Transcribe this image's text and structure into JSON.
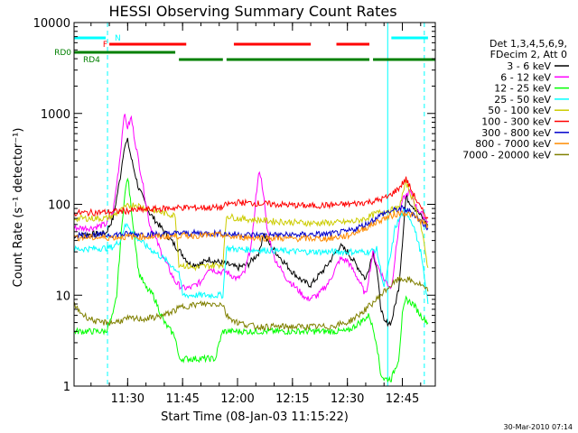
{
  "chart_data": {
    "type": "line",
    "title": "HESSI Observing Summary Count Rates",
    "xlabel": "Start Time (08-Jan-03 11:15:22)",
    "ylabel": "Count Rate (s⁻¹ detector⁻¹)",
    "footer": "30-Mar-2010 07:14",
    "y_scale": "log",
    "ylim": [
      1,
      10000
    ],
    "xlim": [
      "11:15:22",
      "12:54:00"
    ],
    "x_ticks": [
      "11:30",
      "11:45",
      "12:00",
      "12:15",
      "12:30",
      "12:45"
    ],
    "y_ticks": [
      "1",
      "10",
      "100",
      "1000",
      "10000"
    ],
    "legend_title": [
      "Det 1,3,4,5,6,9,",
      "FDecim 2, Att 0"
    ],
    "legend_position": "right",
    "flags": [
      {
        "label": "N",
        "color": "#00ffff",
        "segments": [
          [
            "11:15:22",
            "11:24:00"
          ],
          [
            "12:42:00",
            "12:52:00"
          ]
        ]
      },
      {
        "label": "F",
        "color": "#ff0000",
        "segments": [
          [
            "11:25:00",
            "11:46:00"
          ],
          [
            "11:59:00",
            "12:20:00"
          ],
          [
            "12:27:00",
            "12:36:00"
          ]
        ]
      },
      {
        "label": "RD0",
        "color": "#008000",
        "segments": [
          [
            "11:15:22",
            "11:43:00"
          ]
        ]
      },
      {
        "label": "RD4",
        "color": "#008000",
        "segments": [
          [
            "11:44:00",
            "11:56:00"
          ],
          [
            "11:57:00",
            "12:36:00"
          ],
          [
            "12:37:00",
            "12:54:00"
          ]
        ]
      }
    ],
    "vlines": [
      {
        "x": "11:15:22",
        "style": "solid",
        "color": "#00ffff"
      },
      {
        "x": "11:24:30",
        "style": "dashed",
        "color": "#00ffff"
      },
      {
        "x": "12:41:00",
        "style": "solid",
        "color": "#00ffff"
      },
      {
        "x": "12:51:00",
        "style": "dashed",
        "color": "#00ffff"
      }
    ],
    "series": [
      {
        "name": "3 - 6 keV",
        "color": "#000000",
        "x": [
          "11:15",
          "11:20",
          "11:24",
          "11:26",
          "11:28",
          "11:29",
          "11:30",
          "11:31",
          "11:33",
          "11:36",
          "11:40",
          "11:43",
          "11:45",
          "11:47",
          "11:50",
          "11:52",
          "11:55",
          "11:57",
          "12:00",
          "12:03",
          "12:06",
          "12:07",
          "12:09",
          "12:12",
          "12:15",
          "12:18",
          "12:20",
          "12:24",
          "12:28",
          "12:30",
          "12:33",
          "12:35",
          "12:37",
          "12:38",
          "12:39",
          "12:40",
          "12:42",
          "12:44",
          "12:46",
          "12:48",
          "12:50",
          "12:52"
        ],
        "y": [
          45,
          47,
          48,
          70,
          200,
          420,
          500,
          320,
          150,
          80,
          50,
          35,
          28,
          22,
          22,
          25,
          23,
          22,
          20,
          22,
          30,
          48,
          35,
          25,
          18,
          14,
          13,
          20,
          35,
          30,
          20,
          15,
          30,
          20,
          8,
          5,
          5,
          12,
          120,
          95,
          75,
          60
        ]
      },
      {
        "name": "6 - 12 keV",
        "color": "#ff00ff",
        "x": [
          "11:15",
          "11:20",
          "11:24",
          "11:26",
          "11:28",
          "11:29",
          "11:30",
          "11:31",
          "11:32",
          "11:34",
          "11:36",
          "11:40",
          "11:43",
          "11:45",
          "11:47",
          "11:50",
          "11:52",
          "11:55",
          "11:57",
          "12:00",
          "12:02",
          "12:04",
          "12:05",
          "12:06",
          "12:07",
          "12:08",
          "12:10",
          "12:13",
          "12:16",
          "12:19",
          "12:22",
          "12:25",
          "12:28",
          "12:30",
          "12:33",
          "12:35",
          "12:37",
          "12:38",
          "12:40",
          "12:42",
          "12:44",
          "12:45",
          "12:47",
          "12:49",
          "12:52"
        ],
        "y": [
          55,
          55,
          60,
          80,
          350,
          1000,
          700,
          900,
          500,
          180,
          60,
          25,
          14,
          12,
          12,
          14,
          20,
          18,
          18,
          15,
          18,
          40,
          120,
          240,
          140,
          55,
          26,
          16,
          12,
          9,
          10,
          14,
          25,
          24,
          15,
          10,
          30,
          22,
          15,
          12,
          55,
          110,
          140,
          90,
          65
        ]
      },
      {
        "name": "12 - 25 keV",
        "color": "#00ff00",
        "x": [
          "11:15",
          "11:24",
          "11:26",
          "11:27",
          "11:28",
          "11:29",
          "11:30",
          "11:31",
          "11:32",
          "11:33",
          "11:35",
          "11:37",
          "11:40",
          "11:43",
          "11:44",
          "11:46",
          "11:48",
          "11:50",
          "11:52",
          "11:54",
          "11:55",
          "11:56",
          "12:05",
          "12:10",
          "12:20",
          "12:30",
          "12:36",
          "12:38",
          "12:39",
          "12:40",
          "12:42",
          "12:44",
          "12:45",
          "12:46",
          "12:48",
          "12:50",
          "12:52"
        ],
        "y": [
          4,
          4,
          6,
          10,
          35,
          110,
          200,
          90,
          40,
          18,
          12,
          10,
          5,
          3.5,
          2,
          2,
          2,
          2,
          2,
          2,
          3,
          4,
          4,
          4,
          4,
          4,
          6,
          3,
          1.4,
          1.2,
          1.2,
          2,
          6,
          9,
          8,
          6,
          5
        ]
      },
      {
        "name": "25 - 50 keV",
        "color": "#00ffff",
        "x": [
          "11:15",
          "11:24",
          "11:26",
          "11:28",
          "11:29",
          "11:30",
          "11:32",
          "11:35",
          "11:40",
          "11:44",
          "11:45",
          "11:50",
          "11:56",
          "11:57",
          "12:00",
          "12:20",
          "12:30",
          "12:36",
          "12:38",
          "12:40",
          "12:42",
          "12:43",
          "12:45",
          "12:46",
          "12:48",
          "12:50",
          "12:52"
        ],
        "y": [
          32,
          33,
          34,
          40,
          55,
          60,
          45,
          35,
          25,
          18,
          10,
          10,
          10,
          33,
          32,
          30,
          30,
          30,
          32,
          12,
          30,
          55,
          80,
          85,
          60,
          30,
          8
        ]
      },
      {
        "name": "50 - 100 keV",
        "color": "#cccc00",
        "x": [
          "11:15",
          "11:24",
          "11:26",
          "11:28",
          "11:30",
          "11:32",
          "11:35",
          "11:40",
          "11:43",
          "11:44",
          "11:48",
          "11:52",
          "11:56",
          "11:57",
          "12:00",
          "12:10",
          "12:20",
          "12:28",
          "12:32",
          "12:35",
          "12:38",
          "12:41",
          "12:44",
          "12:46",
          "12:48",
          "12:50",
          "12:52"
        ],
        "y": [
          70,
          70,
          75,
          85,
          95,
          100,
          90,
          80,
          75,
          22,
          20,
          21,
          22,
          75,
          70,
          65,
          62,
          63,
          65,
          70,
          80,
          85,
          90,
          175,
          110,
          60,
          20
        ]
      },
      {
        "name": "100 - 300 keV",
        "color": "#ff0000",
        "x": [
          "11:15",
          "11:24",
          "11:30",
          "11:40",
          "11:44",
          "11:56",
          "11:57",
          "12:00",
          "12:10",
          "12:20",
          "12:30",
          "12:35",
          "12:38",
          "12:41",
          "12:44",
          "12:46",
          "12:48",
          "12:50",
          "12:52"
        ],
        "y": [
          80,
          82,
          85,
          90,
          92,
          92,
          100,
          105,
          100,
          96,
          100,
          105,
          110,
          120,
          150,
          190,
          130,
          90,
          70
        ]
      },
      {
        "name": "300 - 800 keV",
        "color": "#0000cc",
        "x": [
          "11:15",
          "11:24",
          "11:30",
          "11:40",
          "11:44",
          "11:56",
          "11:57",
          "12:05",
          "12:15",
          "12:25",
          "12:30",
          "12:35",
          "12:40",
          "12:45",
          "12:48",
          "12:50",
          "12:52"
        ],
        "y": [
          46,
          46,
          47,
          47,
          48,
          48,
          47,
          46,
          46,
          47,
          50,
          60,
          80,
          90,
          80,
          65,
          55
        ]
      },
      {
        "name": "800 - 7000 keV",
        "color": "#ff8c00",
        "x": [
          "11:15",
          "11:24",
          "11:30",
          "11:40",
          "11:44",
          "11:56",
          "11:57",
          "12:05",
          "12:15",
          "12:25",
          "12:30",
          "12:35",
          "12:40",
          "12:45",
          "12:48",
          "12:50",
          "12:52"
        ],
        "y": [
          43,
          43,
          44,
          44,
          45,
          46,
          44,
          43,
          42,
          42,
          45,
          55,
          70,
          82,
          75,
          65,
          58
        ]
      },
      {
        "name": "7000 - 20000 keV",
        "color": "#808000",
        "x": [
          "11:15",
          "11:18",
          "11:22",
          "11:26",
          "11:30",
          "11:35",
          "11:40",
          "11:45",
          "11:50",
          "11:56",
          "11:57",
          "12:00",
          "12:05",
          "12:10",
          "12:20",
          "12:25",
          "12:30",
          "12:33",
          "12:35",
          "12:38",
          "12:41",
          "12:44",
          "12:46",
          "12:48",
          "12:50",
          "12:52"
        ],
        "y": [
          8,
          6,
          5,
          5,
          5.5,
          5.5,
          6,
          7.5,
          8,
          8,
          6,
          5,
          4.5,
          4.5,
          4.5,
          4.5,
          5,
          6,
          7,
          9,
          12,
          15,
          15,
          14,
          13,
          11
        ]
      }
    ]
  }
}
